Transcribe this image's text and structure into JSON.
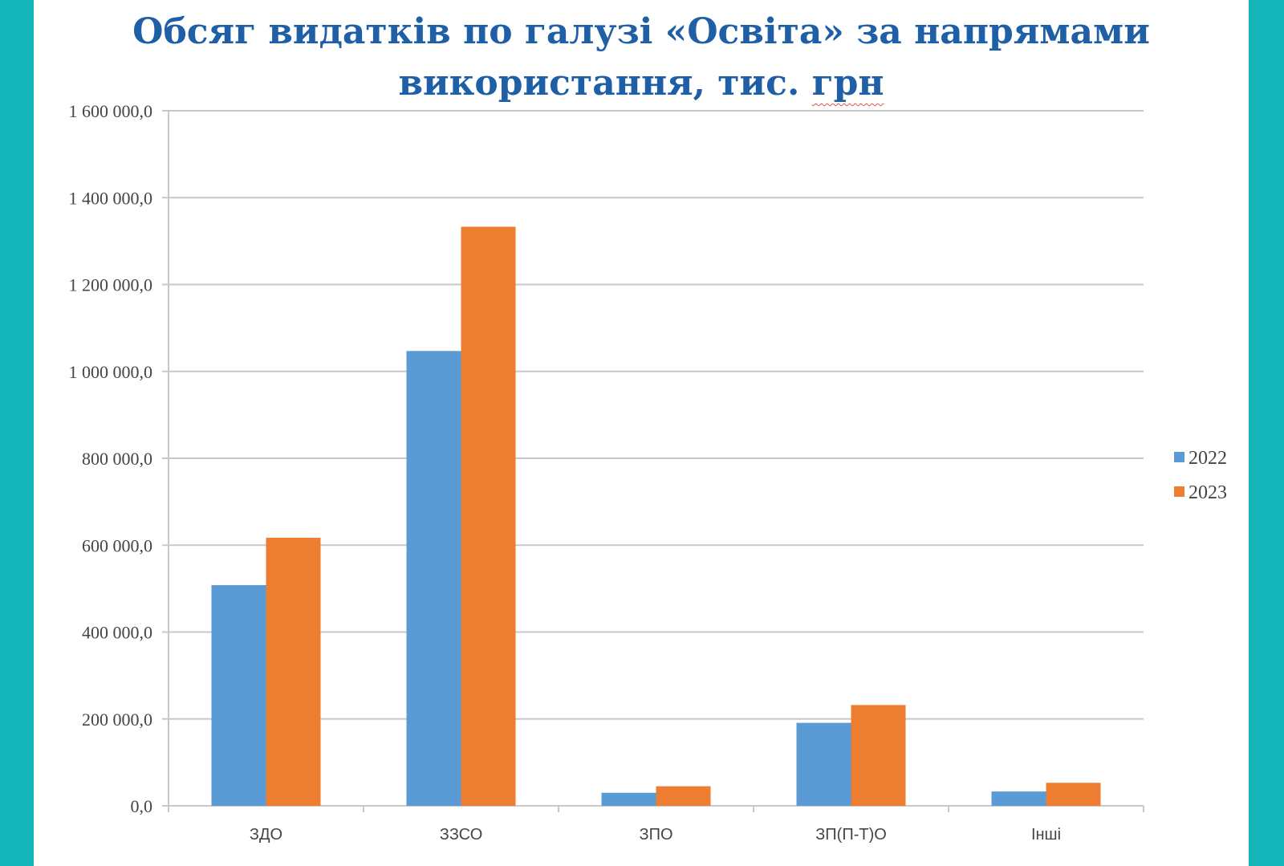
{
  "chart_data": {
    "type": "bar",
    "title_line1": "Обсяг видатків по галузі «Освіта» за напрямами",
    "title_line2_main": "використання, тис. ",
    "title_line2_tail": "грн",
    "xlabel": "",
    "ylabel": "",
    "ylim": [
      0,
      1600000
    ],
    "yticks": [
      {
        "value": 0,
        "label": "0,0"
      },
      {
        "value": 200000,
        "label": "200 000,0"
      },
      {
        "value": 400000,
        "label": "400 000,0"
      },
      {
        "value": 600000,
        "label": "600 000,0"
      },
      {
        "value": 800000,
        "label": "800 000,0"
      },
      {
        "value": 1000000,
        "label": "1 000 000,0"
      },
      {
        "value": 1200000,
        "label": "1 200 000,0"
      },
      {
        "value": 1400000,
        "label": "1 400 000,0"
      },
      {
        "value": 1600000,
        "label": "1 600 000,0"
      }
    ],
    "categories": [
      "ЗДО",
      "ЗЗСО",
      "ЗПО",
      "ЗП(П-Т)О",
      "Інші"
    ],
    "series": [
      {
        "name": "2022",
        "color": "#5b9bd5",
        "values": [
          508000,
          1047000,
          30000,
          191000,
          33000
        ]
      },
      {
        "name": "2023",
        "color": "#ed7d31",
        "values": [
          617000,
          1333000,
          45000,
          232000,
          53000
        ]
      }
    ],
    "grid": true,
    "legend": "right"
  }
}
